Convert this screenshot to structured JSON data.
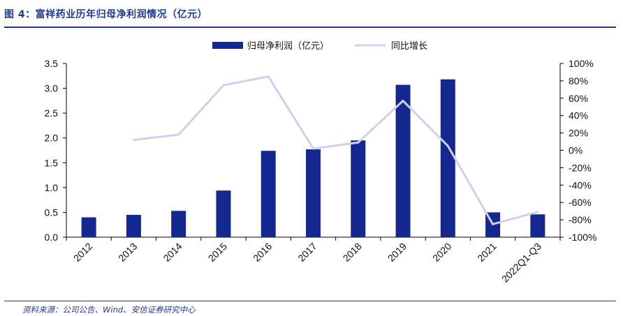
{
  "figure": {
    "title": "图 4：富祥药业历年归母净利润情况（亿元）",
    "source": "资料来源：公司公告、Wind、安信证券研究中心"
  },
  "chart_data": {
    "type": "bar",
    "categories": [
      "2012",
      "2013",
      "2014",
      "2015",
      "2016",
      "2017",
      "2018",
      "2019",
      "2020",
      "2021",
      "2022Q1-Q3"
    ],
    "series": [
      {
        "name": "归母净利润（亿元）",
        "kind": "bar",
        "axis": "left",
        "color": "#14288f",
        "values": [
          0.4,
          0.45,
          0.53,
          0.94,
          1.74,
          1.77,
          1.95,
          3.07,
          3.18,
          0.5,
          0.46
        ]
      },
      {
        "name": "同比增长",
        "kind": "line",
        "axis": "right",
        "color": "#cfcfee",
        "values": [
          null,
          12,
          18,
          75,
          85,
          2,
          9,
          57,
          5,
          -85,
          -71
        ]
      }
    ],
    "y_left": {
      "min": 0,
      "max": 3.5,
      "ticks": [
        "0.0",
        "0.5",
        "1.0",
        "1.5",
        "2.0",
        "2.5",
        "3.0",
        "3.5"
      ]
    },
    "y_right": {
      "min": -100,
      "max": 100,
      "ticks": [
        "-100%",
        "-80%",
        "-60%",
        "-40%",
        "-20%",
        "0%",
        "20%",
        "40%",
        "60%",
        "80%",
        "100%"
      ]
    },
    "legend_position": "top-center",
    "grid": false
  }
}
